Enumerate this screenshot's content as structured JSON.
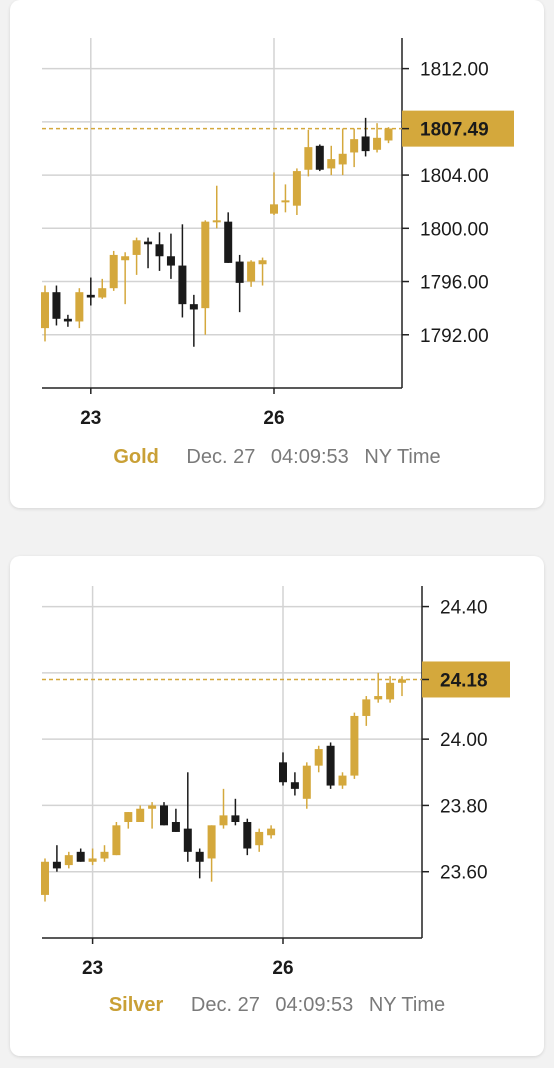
{
  "theme": {
    "up_color": "#d4a83c",
    "down_color": "#1a1a1a",
    "badge_color": "#d4a83c",
    "grid_color": "#d3d3d3",
    "axis_color": "#222222"
  },
  "gold": {
    "metal": "Gold",
    "date": "Dec. 27",
    "time": "04:09:53",
    "timezone": "NY Time",
    "current_price": "1807.49"
  },
  "silver": {
    "metal": "Silver",
    "date": "Dec. 27",
    "time": "04:09:53",
    "timezone": "NY Time",
    "current_price": "24.18"
  },
  "chart_data": [
    {
      "type": "candlestick",
      "series_name": "Gold",
      "y_ticks": [
        1792.0,
        1796.0,
        1800.0,
        1804.0,
        1808.0,
        1812.0
      ],
      "y_tick_labels": [
        "1792.00",
        "1796.00",
        "1800.00",
        "1804.00",
        "",
        "1812.00"
      ],
      "ylim": [
        1788.0,
        1814.0
      ],
      "x_ticks": [
        {
          "label": "23",
          "index": 4
        },
        {
          "label": "26",
          "index": 20
        }
      ],
      "current_price": 1807.49,
      "candles": [
        {
          "o": 1792.5,
          "h": 1795.7,
          "l": 1791.5,
          "c": 1795.2
        },
        {
          "o": 1795.2,
          "h": 1795.7,
          "l": 1792.7,
          "c": 1793.2
        },
        {
          "o": 1793.2,
          "h": 1793.5,
          "l": 1792.6,
          "c": 1793.0
        },
        {
          "o": 1793.0,
          "h": 1795.5,
          "l": 1792.5,
          "c": 1795.2
        },
        {
          "o": 1795.0,
          "h": 1796.3,
          "l": 1794.2,
          "c": 1794.8
        },
        {
          "o": 1794.8,
          "h": 1796.2,
          "l": 1794.7,
          "c": 1795.5
        },
        {
          "o": 1795.5,
          "h": 1798.3,
          "l": 1795.3,
          "c": 1798.0
        },
        {
          "o": 1797.6,
          "h": 1798.2,
          "l": 1794.3,
          "c": 1797.9
        },
        {
          "o": 1798.0,
          "h": 1799.3,
          "l": 1796.5,
          "c": 1799.1
        },
        {
          "o": 1799.0,
          "h": 1799.3,
          "l": 1797.0,
          "c": 1798.8
        },
        {
          "o": 1798.8,
          "h": 1799.7,
          "l": 1796.8,
          "c": 1797.9
        },
        {
          "o": 1797.9,
          "h": 1799.6,
          "l": 1796.2,
          "c": 1797.2
        },
        {
          "o": 1797.2,
          "h": 1800.3,
          "l": 1793.3,
          "c": 1794.3
        },
        {
          "o": 1794.3,
          "h": 1795.0,
          "l": 1791.1,
          "c": 1793.9
        },
        {
          "o": 1794.0,
          "h": 1800.6,
          "l": 1792.0,
          "c": 1800.5
        },
        {
          "o": 1800.5,
          "h": 1803.2,
          "l": 1800.0,
          "c": 1800.6
        },
        {
          "o": 1800.5,
          "h": 1801.2,
          "l": 1797.4,
          "c": 1797.4
        },
        {
          "o": 1797.5,
          "h": 1798.0,
          "l": 1793.7,
          "c": 1795.9
        },
        {
          "o": 1796.0,
          "h": 1797.6,
          "l": 1795.6,
          "c": 1797.5
        },
        {
          "o": 1797.3,
          "h": 1797.8,
          "l": 1795.7,
          "c": 1797.6
        },
        {
          "o": 1801.1,
          "h": 1804.2,
          "l": 1801.0,
          "c": 1801.8
        },
        {
          "o": 1802.0,
          "h": 1803.3,
          "l": 1801.2,
          "c": 1802.1
        },
        {
          "o": 1801.7,
          "h": 1804.5,
          "l": 1801.0,
          "c": 1804.3
        },
        {
          "o": 1804.4,
          "h": 1807.4,
          "l": 1803.9,
          "c": 1806.1
        },
        {
          "o": 1806.2,
          "h": 1806.3,
          "l": 1804.3,
          "c": 1804.4
        },
        {
          "o": 1804.5,
          "h": 1806.2,
          "l": 1804.0,
          "c": 1805.2
        },
        {
          "o": 1804.8,
          "h": 1807.5,
          "l": 1804.0,
          "c": 1805.6
        },
        {
          "o": 1805.7,
          "h": 1807.5,
          "l": 1804.6,
          "c": 1806.7
        },
        {
          "o": 1806.9,
          "h": 1808.3,
          "l": 1805.4,
          "c": 1805.8
        },
        {
          "o": 1805.9,
          "h": 1807.9,
          "l": 1805.7,
          "c": 1806.8
        },
        {
          "o": 1806.6,
          "h": 1807.6,
          "l": 1806.4,
          "c": 1807.5
        }
      ]
    },
    {
      "type": "candlestick",
      "series_name": "Silver",
      "y_ticks": [
        23.6,
        23.8,
        24.0,
        24.2,
        24.4
      ],
      "y_tick_labels": [
        "23.60",
        "23.80",
        "24.00",
        "",
        "24.40"
      ],
      "ylim": [
        23.4,
        24.45
      ],
      "x_ticks": [
        {
          "label": "23",
          "index": 4
        },
        {
          "label": "26",
          "index": 20
        }
      ],
      "current_price": 24.18,
      "candles": [
        {
          "o": 23.53,
          "h": 23.64,
          "l": 23.51,
          "c": 23.63
        },
        {
          "o": 23.63,
          "h": 23.68,
          "l": 23.6,
          "c": 23.61
        },
        {
          "o": 23.62,
          "h": 23.66,
          "l": 23.61,
          "c": 23.65
        },
        {
          "o": 23.66,
          "h": 23.67,
          "l": 23.63,
          "c": 23.63
        },
        {
          "o": 23.63,
          "h": 23.67,
          "l": 23.62,
          "c": 23.64
        },
        {
          "o": 23.64,
          "h": 23.68,
          "l": 23.63,
          "c": 23.66
        },
        {
          "o": 23.65,
          "h": 23.75,
          "l": 23.65,
          "c": 23.74
        },
        {
          "o": 23.75,
          "h": 23.78,
          "l": 23.73,
          "c": 23.78
        },
        {
          "o": 23.75,
          "h": 23.8,
          "l": 23.75,
          "c": 23.79
        },
        {
          "o": 23.79,
          "h": 23.81,
          "l": 23.73,
          "c": 23.8
        },
        {
          "o": 23.8,
          "h": 23.81,
          "l": 23.74,
          "c": 23.74
        },
        {
          "o": 23.75,
          "h": 23.79,
          "l": 23.72,
          "c": 23.72
        },
        {
          "o": 23.73,
          "h": 23.9,
          "l": 23.63,
          "c": 23.66
        },
        {
          "o": 23.66,
          "h": 23.67,
          "l": 23.58,
          "c": 23.63
        },
        {
          "o": 23.64,
          "h": 23.74,
          "l": 23.57,
          "c": 23.74
        },
        {
          "o": 23.74,
          "h": 23.85,
          "l": 23.73,
          "c": 23.77
        },
        {
          "o": 23.77,
          "h": 23.82,
          "l": 23.74,
          "c": 23.75
        },
        {
          "o": 23.75,
          "h": 23.76,
          "l": 23.65,
          "c": 23.67
        },
        {
          "o": 23.68,
          "h": 23.73,
          "l": 23.66,
          "c": 23.72
        },
        {
          "o": 23.71,
          "h": 23.74,
          "l": 23.7,
          "c": 23.73
        },
        {
          "o": 23.93,
          "h": 23.96,
          "l": 23.86,
          "c": 23.87
        },
        {
          "o": 23.87,
          "h": 23.9,
          "l": 23.83,
          "c": 23.85
        },
        {
          "o": 23.82,
          "h": 23.93,
          "l": 23.79,
          "c": 23.92
        },
        {
          "o": 23.92,
          "h": 23.98,
          "l": 23.9,
          "c": 23.97
        },
        {
          "o": 23.98,
          "h": 23.99,
          "l": 23.85,
          "c": 23.86
        },
        {
          "o": 23.86,
          "h": 23.9,
          "l": 23.85,
          "c": 23.89
        },
        {
          "o": 23.89,
          "h": 24.08,
          "l": 23.88,
          "c": 24.07
        },
        {
          "o": 24.07,
          "h": 24.13,
          "l": 24.04,
          "c": 24.12
        },
        {
          "o": 24.12,
          "h": 24.2,
          "l": 24.11,
          "c": 24.13
        },
        {
          "o": 24.12,
          "h": 24.19,
          "l": 24.11,
          "c": 24.17
        },
        {
          "o": 24.17,
          "h": 24.19,
          "l": 24.13,
          "c": 24.18
        }
      ]
    }
  ]
}
